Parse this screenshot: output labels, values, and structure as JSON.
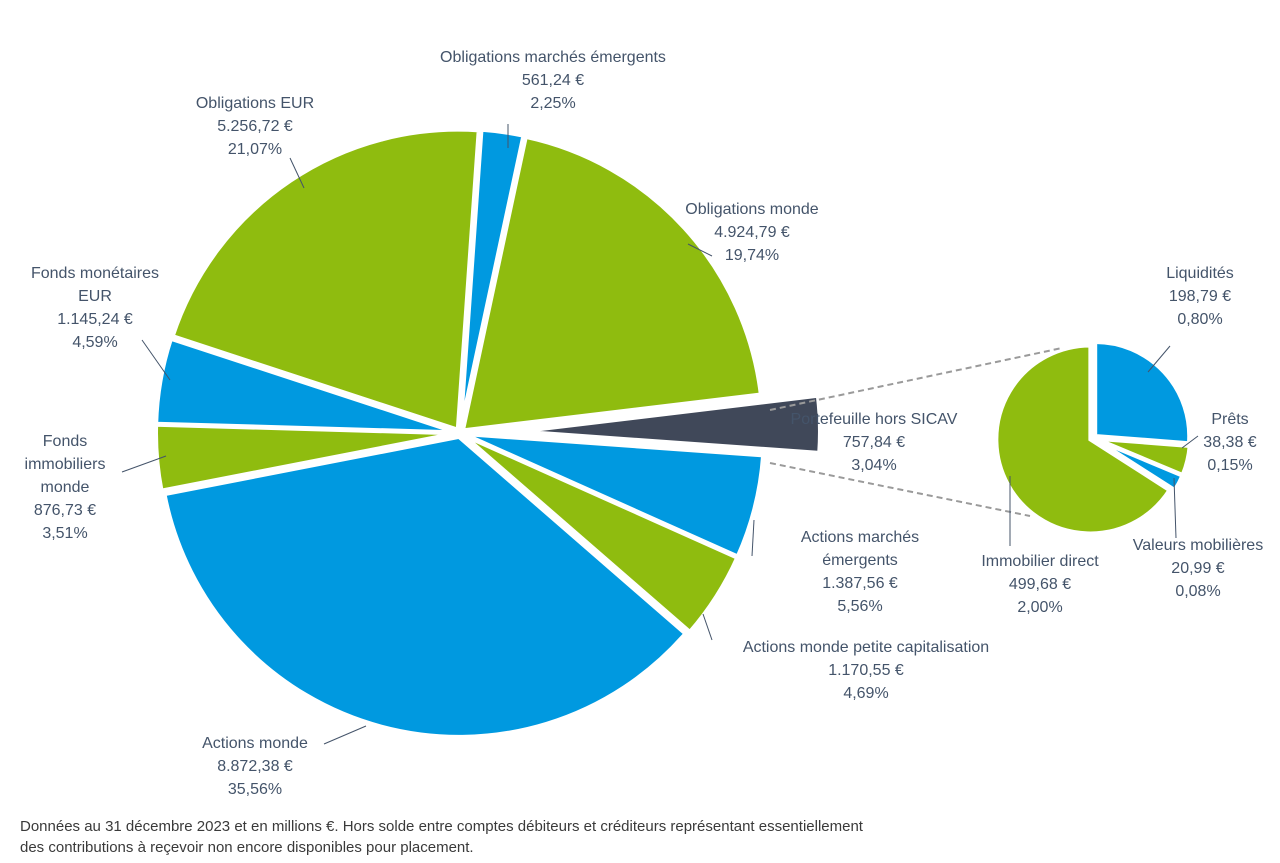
{
  "chart_data": [
    {
      "type": "pie",
      "colors": {
        "blue": "#0099e0",
        "green": "#8fbc0f",
        "dark": "#404859"
      },
      "slices": [
        {
          "name": "Obligations marchés émergents",
          "value": "561,24 €",
          "percent": "2,25%",
          "amount": 561.24,
          "color": "#0099e0"
        },
        {
          "name": "Obligations monde",
          "value": "4.924,79 €",
          "percent": "19,74%",
          "amount": 4924.79,
          "color": "#8fbc0f"
        },
        {
          "name": "Portefeuille hors SICAV",
          "value": "757,84 €",
          "percent": "3,04%",
          "amount": 757.84,
          "color": "#404859"
        },
        {
          "name": "Actions marchés émergents",
          "value": "1.387,56 €",
          "percent": "5,56%",
          "amount": 1387.56,
          "color": "#0099e0"
        },
        {
          "name": "Actions monde petite capitalisation",
          "value": "1.170,55 €",
          "percent": "4,69%",
          "amount": 1170.55,
          "color": "#8fbc0f"
        },
        {
          "name": "Actions monde",
          "value": "8.872,38 €",
          "percent": "35,56%",
          "amount": 8872.38,
          "color": "#0099e0"
        },
        {
          "name": "Fonds immobiliers monde",
          "value": "876,73 €",
          "percent": "3,51%",
          "amount": 876.73,
          "color": "#8fbc0f"
        },
        {
          "name": "Fonds monétaires EUR",
          "value": "1.145,24 €",
          "percent": "4,59%",
          "amount": 1145.24,
          "color": "#0099e0"
        },
        {
          "name": "Obligations EUR",
          "value": "5.256,72 €",
          "percent": "21,07%",
          "amount": 5256.72,
          "color": "#8fbc0f"
        }
      ]
    },
    {
      "type": "pie",
      "breakdown_of": "Portefeuille hors SICAV",
      "slices": [
        {
          "name": "Liquidités",
          "value": "198,79 €",
          "percent": "0,80%",
          "amount": 198.79,
          "color": "#0099e0"
        },
        {
          "name": "Prêts",
          "value": "38,38 €",
          "percent": "0,15%",
          "amount": 38.38,
          "color": "#8fbc0f"
        },
        {
          "name": "Valeurs mobilières",
          "value": "20,99 €",
          "percent": "0,08%",
          "amount": 20.99,
          "color": "#0099e0"
        },
        {
          "name": "Immobilier direct",
          "value": "499,68 €",
          "percent": "2,00%",
          "amount": 499.68,
          "color": "#8fbc0f"
        }
      ]
    }
  ],
  "labels": {
    "obl_em": {
      "l1": "Obligations marchés émergents",
      "l2": "561,24 €",
      "l3": "2,25%"
    },
    "obl_eur": {
      "l1": "Obligations EUR",
      "l2": "5.256,72 €",
      "l3": "21,07%"
    },
    "obl_monde": {
      "l1": "Obligations monde",
      "l2": "4.924,79 €",
      "l3": "19,74%"
    },
    "fonds_mon": {
      "l1": "Fonds monétaires",
      "l2": "EUR",
      "l3": "1.145,24 €",
      "l4": "4,59%"
    },
    "fonds_imm": {
      "l1": "Fonds",
      "l2": "immobiliers",
      "l3": "monde",
      "l4": "876,73 €",
      "l5": "3,51%"
    },
    "portef": {
      "l1": "Portefeuille hors SICAV",
      "l2": "757,84 €",
      "l3": "3,04%"
    },
    "act_em": {
      "l1": "Actions marchés",
      "l2": "émergents",
      "l3": "1.387,56 €",
      "l4": "5,56%"
    },
    "act_pc": {
      "l1": "Actions monde petite capitalisation",
      "l2": "1.170,55 €",
      "l3": "4,69%"
    },
    "act_monde": {
      "l1": "Actions monde",
      "l2": "8.872,38 €",
      "l3": "35,56%"
    },
    "liq": {
      "l1": "Liquidités",
      "l2": "198,79 €",
      "l3": "0,80%"
    },
    "prets": {
      "l1": "Prêts",
      "l2": "38,38 €",
      "l3": "0,15%"
    },
    "valeurs": {
      "l1": "Valeurs mobilières",
      "l2": "20,99 €",
      "l3": "0,08%"
    },
    "immo": {
      "l1": "Immobilier direct",
      "l2": "499,68 €",
      "l3": "2,00%"
    }
  },
  "footnote": {
    "line1": "Données au 31 décembre 2023 et en millions €.  Hors solde entre comptes  débiteurs et créditeurs représentant essentiellement",
    "line2": "des contributions à reçevoir non encore disponibles pour placement."
  }
}
